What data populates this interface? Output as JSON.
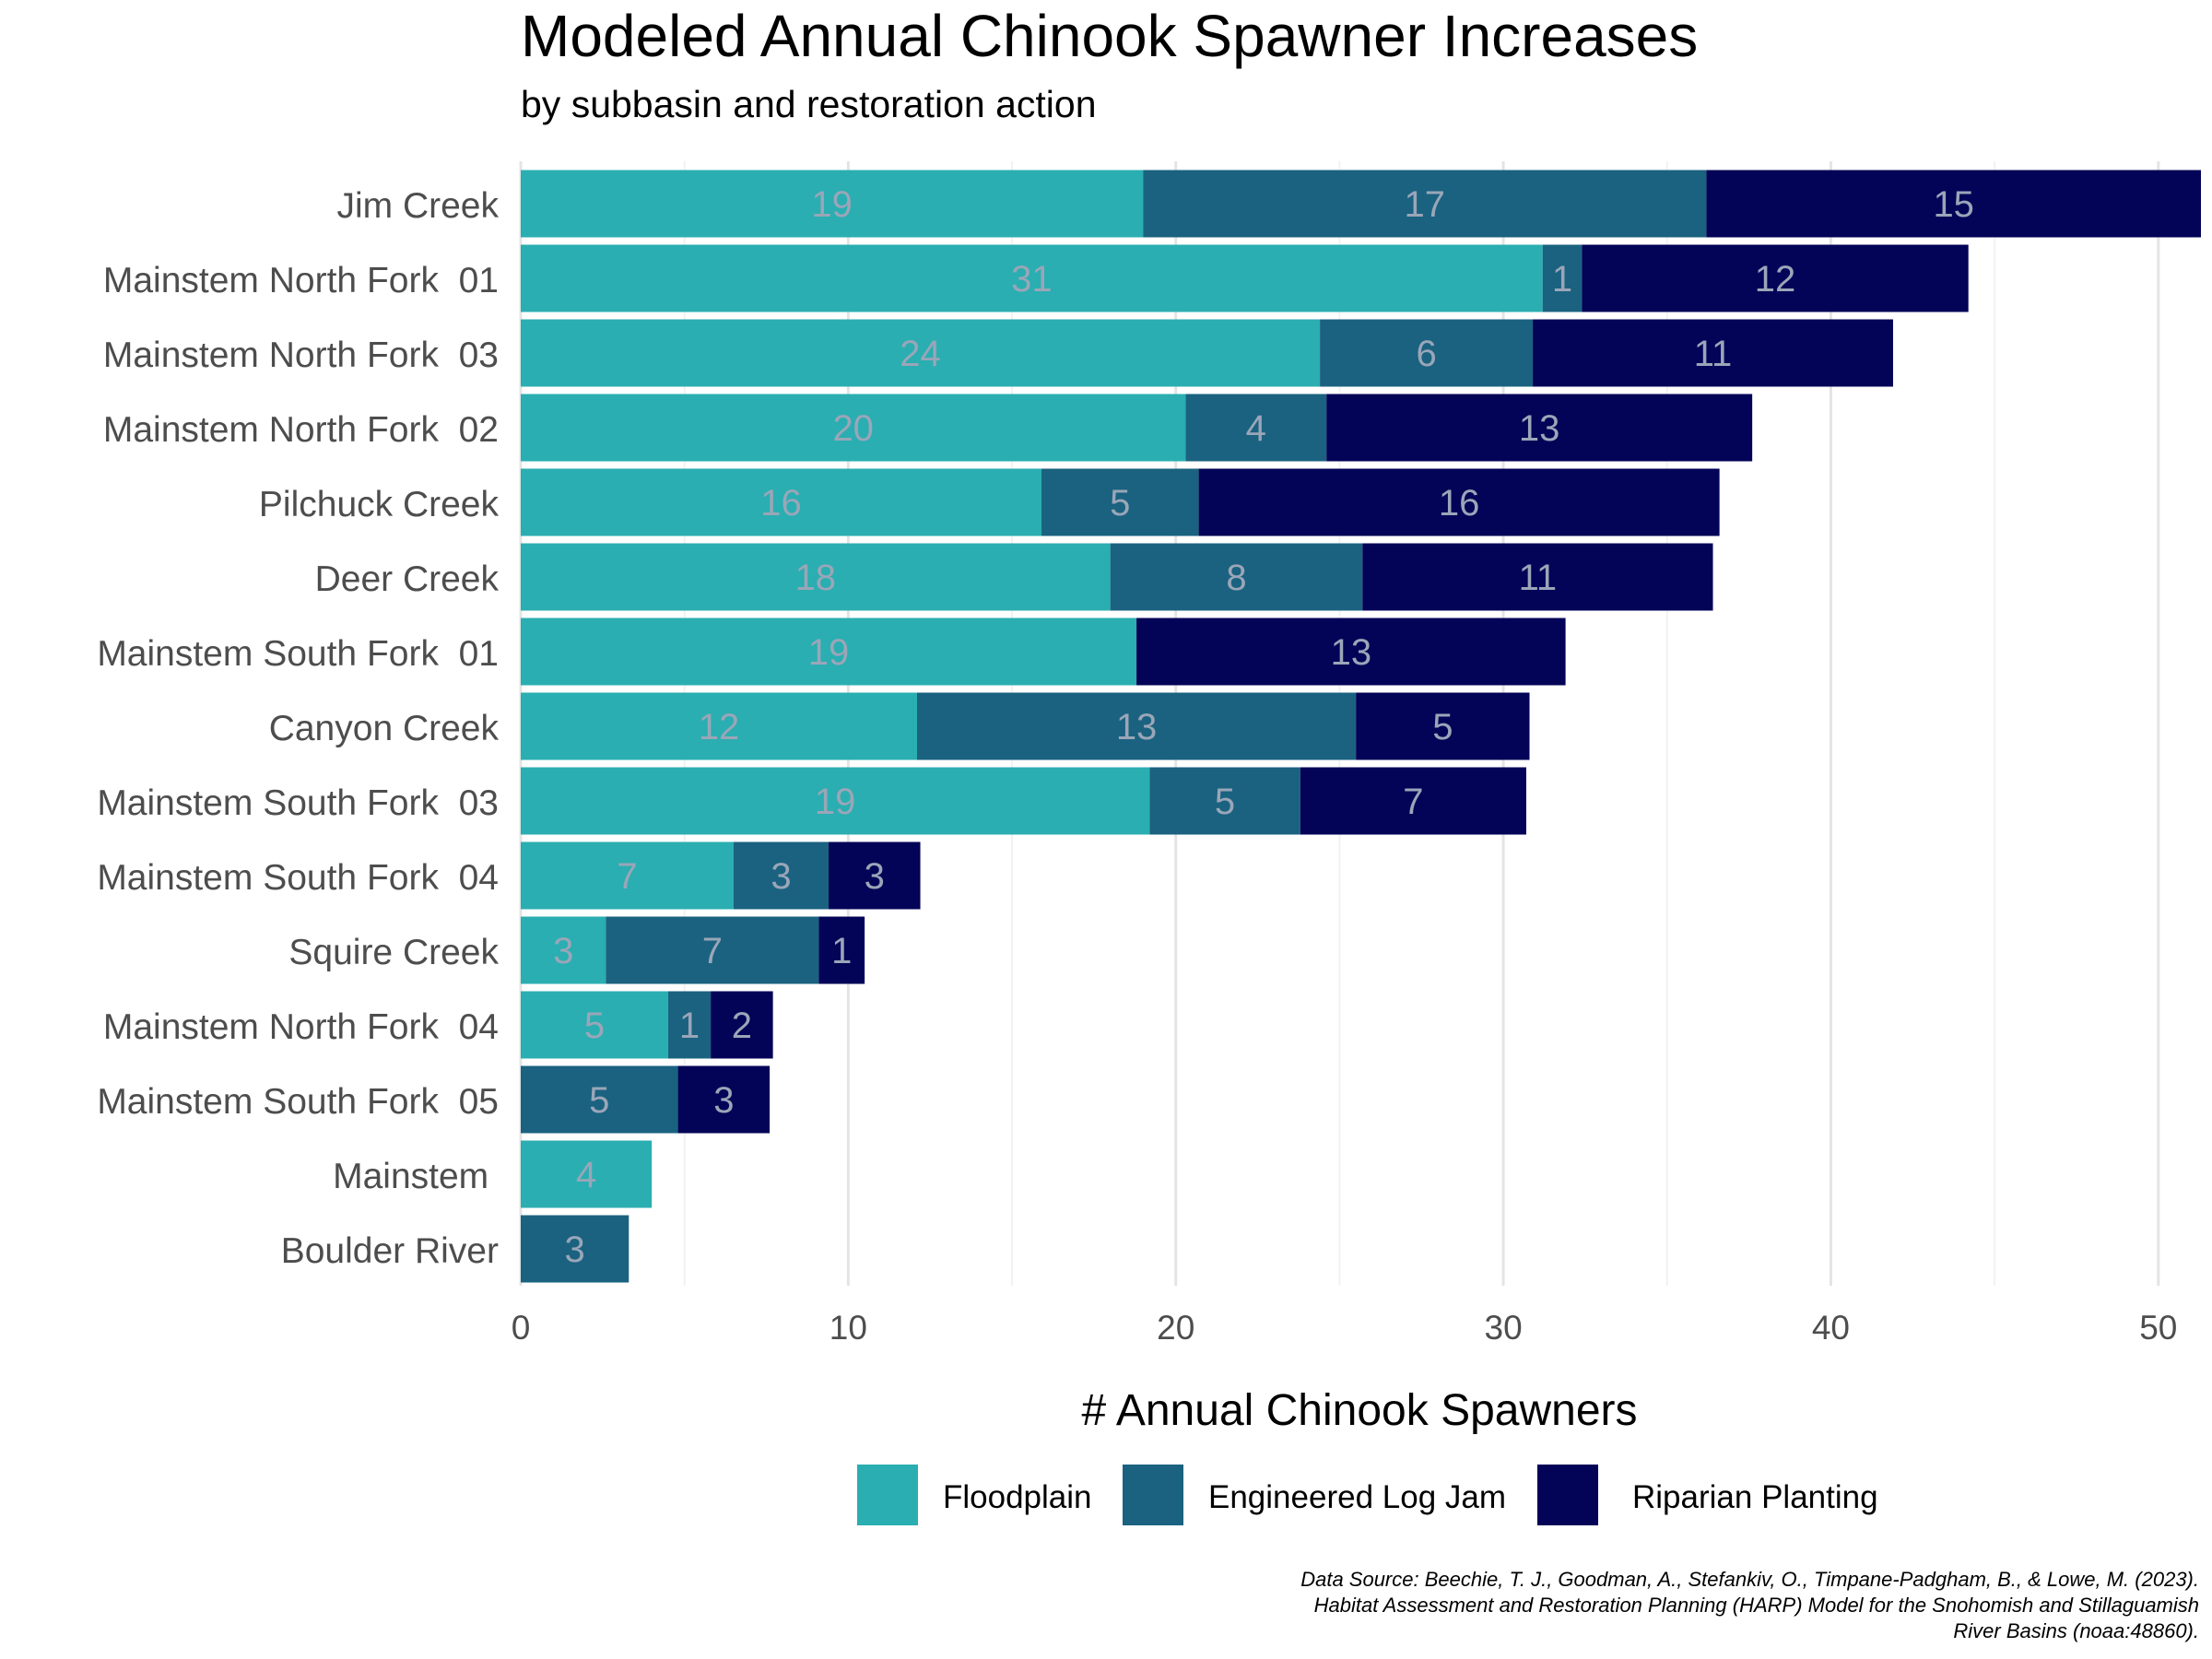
{
  "chart_data": {
    "type": "bar",
    "orientation": "horizontal",
    "stacked": true,
    "title": "Modeled Annual Chinook Spawner Increases",
    "subtitle": "by subbasin and restoration action",
    "xlabel": "# Annual Chinook Spawners",
    "ylabel": "",
    "xlim": [
      0,
      51.3
    ],
    "xticks": [
      0,
      10,
      20,
      30,
      40,
      50
    ],
    "grid": true,
    "legend": "bottom",
    "categories": [
      "Jim Creek",
      "Mainstem North Fork  01",
      "Mainstem North Fork  03",
      "Mainstem North Fork  02",
      "Pilchuck Creek",
      "Deer Creek",
      "Mainstem South Fork  01",
      "Canyon Creek",
      "Mainstem South Fork  03",
      "Mainstem South Fork  04",
      "Squire Creek",
      "Mainstem North Fork  04",
      "Mainstem South Fork  05",
      "Mainstem ",
      "Boulder River"
    ],
    "series": [
      {
        "name": "Floodplain",
        "color": "#2aaeb1",
        "values": [
          19.0,
          31.2,
          24.4,
          20.3,
          15.9,
          18.0,
          18.8,
          12.1,
          19.2,
          6.5,
          2.6,
          4.5,
          0,
          4.0,
          0
        ],
        "labels": [
          "19",
          "31",
          "24",
          "20",
          "16",
          "18",
          "19",
          "12",
          "19",
          "7",
          "3",
          "5",
          "",
          "4",
          ""
        ]
      },
      {
        "name": "Engineered Log Jam",
        "color": "#1a6280",
        "values": [
          17.2,
          1.2,
          6.5,
          4.3,
          4.8,
          7.7,
          0,
          13.4,
          4.6,
          2.9,
          6.5,
          1.3,
          4.8,
          0,
          3.3
        ],
        "labels": [
          "17",
          "1",
          "6",
          "4",
          "5",
          "8",
          "",
          "13",
          "5",
          "3",
          "7",
          "1",
          "5",
          "",
          "3"
        ]
      },
      {
        "name": "Riparian Planting",
        "color": "#030357",
        "values": [
          15.1,
          11.8,
          11.0,
          13.0,
          15.9,
          10.7,
          13.1,
          5.3,
          6.9,
          2.8,
          1.4,
          1.9,
          2.8,
          0,
          0
        ],
        "labels": [
          "15",
          "12",
          "11",
          "13",
          "16",
          "11",
          "13",
          "5",
          "7",
          "3",
          "1",
          "2",
          "3",
          "",
          ""
        ]
      }
    ]
  },
  "source_note": [
    "Data Source: Beechie, T. J., Goodman, A., Stefankiv, O., Timpane-Padgham, B., & Lowe, M. (2023).",
    "Habitat Assessment and Restoration Planning (HARP) Model for the Snohomish and Stillaguamish",
    "River Basins (noaa:48860)."
  ]
}
